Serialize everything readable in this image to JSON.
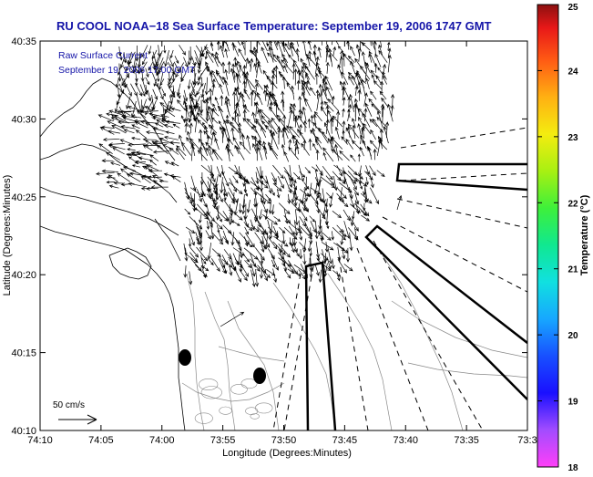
{
  "title": "RU COOL  NOAA−18  Sea Surface Temperature:  September 19, 2006 1747 GMT",
  "legend": {
    "line1": "Raw Surface Current",
    "line2": "September 19, 2006 17:00 GMT"
  },
  "scale_label": "50 cm/s",
  "axes": {
    "xlabel": "Longitude (Degrees:Minutes)",
    "ylabel": "Latitude (Degrees:Minutes)",
    "x_ticks": [
      "74:10",
      "74:05",
      "74:00",
      "73:55",
      "73:50",
      "73:45",
      "73:40",
      "73:35",
      "73:3"
    ],
    "y_ticks": [
      "40:35",
      "40:30",
      "40:25",
      "40:20",
      "40:15",
      "40:10"
    ]
  },
  "colorbar": {
    "label": "Temperature (°C)",
    "ticks": [
      "25",
      "24",
      "23",
      "22",
      "21",
      "20",
      "19",
      "18"
    ],
    "min": 18,
    "max": 25
  },
  "colors": {
    "title": "#1515a8",
    "legend_text": "#1515a8",
    "coast": "#000000",
    "contours": "#888888",
    "arrows": "#000000"
  }
}
